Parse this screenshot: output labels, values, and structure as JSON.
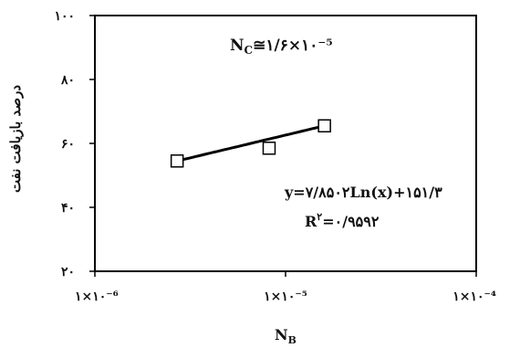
{
  "chart_data": {
    "type": "scatter",
    "x_scale": "log",
    "xlabel_main": "N",
    "xlabel_sub": "B",
    "ylabel": "درصد بازیافت نفت",
    "xlim": [
      1e-06,
      0.0001
    ],
    "ylim": [
      20,
      100
    ],
    "x_ticks": [
      {
        "value": 1e-06,
        "label": "۱×۱۰⁻⁶"
      },
      {
        "value": 1e-05,
        "label": "۱×۱۰⁻⁵"
      },
      {
        "value": 0.0001,
        "label": "۱×۱۰⁻⁴"
      }
    ],
    "y_ticks": [
      {
        "value": 20,
        "label": "۲۰"
      },
      {
        "value": 40,
        "label": "۴۰"
      },
      {
        "value": 60,
        "label": "۶۰"
      },
      {
        "value": 80,
        "label": "۸۰"
      },
      {
        "value": 100,
        "label": "۱۰۰"
      }
    ],
    "series": [
      {
        "marker": "open-square",
        "color": "#000000",
        "x": [
          2.7e-06,
          8.2e-06,
          1.6e-05
        ],
        "y": [
          54.5,
          58.5,
          65.5
        ]
      }
    ],
    "trendline": {
      "type": "logarithmic",
      "slope": 7.8502,
      "intercept": 151.3,
      "x_range": [
        2.7e-06,
        1.6e-05
      ],
      "color": "#000000"
    },
    "annotations": {
      "nc_main": "N",
      "nc_sub": "C",
      "nc_value": "≅۱/۶×۱۰⁻⁵",
      "equation": "y=۷/۸۵۰۲Ln(x)+۱۵۱/۳",
      "r2_main": "R",
      "r2_sup": "۲",
      "r2_value": "=۰/۹۵۹۲"
    },
    "grid": false,
    "legend": "none"
  }
}
